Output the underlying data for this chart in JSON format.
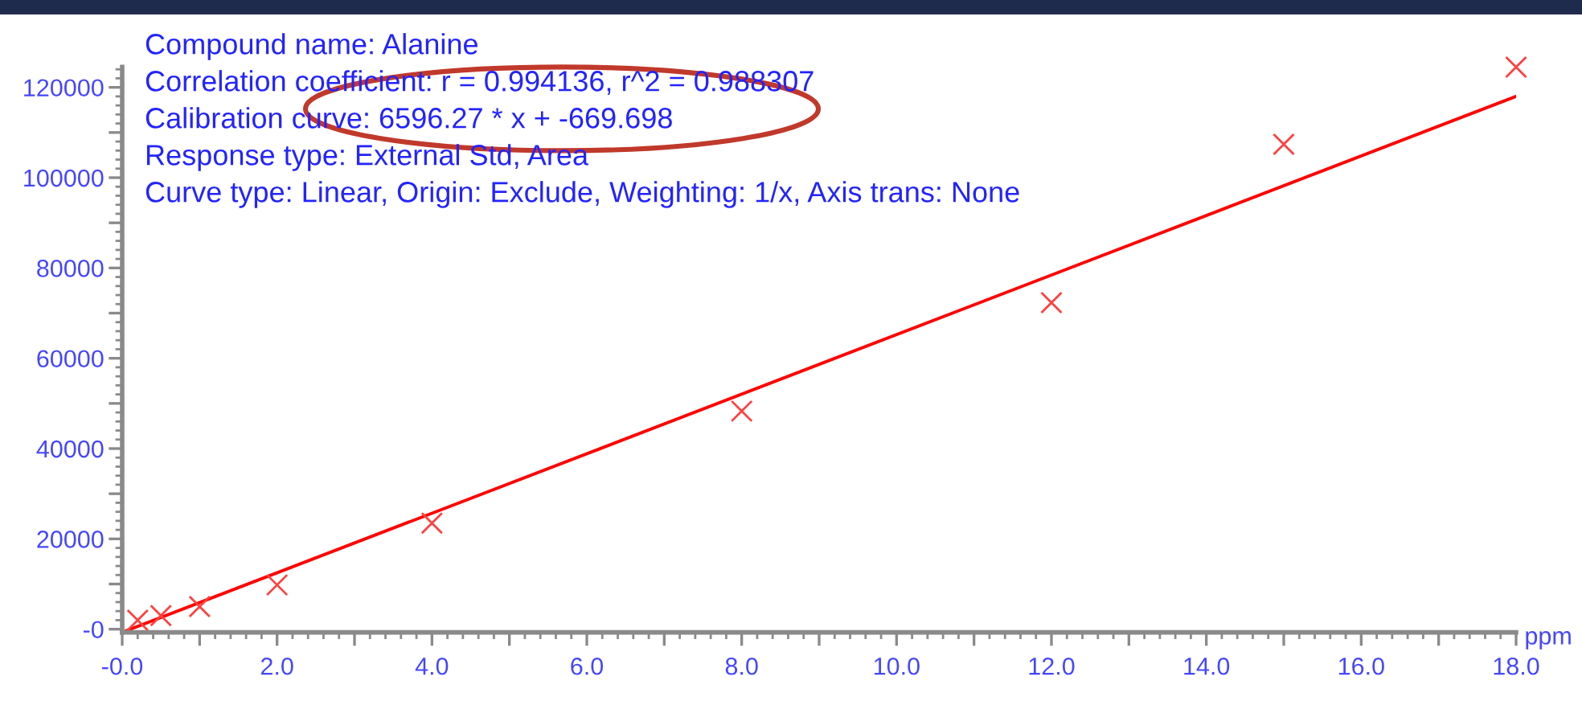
{
  "chart_data": {
    "type": "scatter",
    "xlabel": "ppm",
    "annotations": [
      "Compound name: Alanine",
      "Correlation coefficient: r = 0.994136, r^2 = 0.988307",
      "Calibration curve: 6596.27 * x + -669.698",
      "Response type: External Std, Area",
      "Curve type: Linear, Origin: Exclude, Weighting: 1/x, Axis trans: None"
    ],
    "series": [
      {
        "marker": "cross",
        "color": "#ff4040",
        "x": [
          0.2,
          0.5,
          1.0,
          2.0,
          4.0,
          8.0,
          12.0,
          15.0,
          18.0
        ],
        "values": [
          2000,
          3000,
          5000,
          9800,
          23500,
          48300,
          72300,
          107400,
          124500
        ]
      },
      {
        "type": "line",
        "marker": "none",
        "color": "#ff0000",
        "x": [
          0,
          18
        ],
        "values": [
          -700,
          118000
        ]
      }
    ],
    "xlim": [
      0,
      18
    ],
    "ylim": [
      -700,
      124500
    ],
    "xticks": [
      {
        "value": 0,
        "label": "-0.0"
      },
      {
        "value": 1,
        "label": null
      },
      {
        "value": 2,
        "label": "2.0"
      },
      {
        "value": 3,
        "label": null
      },
      {
        "value": 4,
        "label": "4.0"
      },
      {
        "value": 5,
        "label": null
      },
      {
        "value": 6,
        "label": "6.0"
      },
      {
        "value": 7,
        "label": null
      },
      {
        "value": 8,
        "label": "8.0"
      },
      {
        "value": 9,
        "label": null
      },
      {
        "value": 10,
        "label": "10.0"
      },
      {
        "value": 11,
        "label": null
      },
      {
        "value": 12,
        "label": "12.0"
      },
      {
        "value": 13,
        "label": null
      },
      {
        "value": 14,
        "label": "14.0"
      },
      {
        "value": 15,
        "label": null
      },
      {
        "value": 16,
        "label": "16.0"
      },
      {
        "value": 17,
        "label": null
      },
      {
        "value": 18,
        "label": "18.0"
      }
    ],
    "yticks": [
      {
        "value": 0,
        "label": "-0"
      },
      {
        "value": 10000,
        "label": null
      },
      20000,
      {
        "value": 30000,
        "label": null
      },
      40000,
      {
        "value": 50000,
        "label": null
      },
      60000,
      {
        "value": 70000,
        "label": null
      },
      80000,
      {
        "value": 90000,
        "label": null
      },
      100000,
      {
        "value": 110000,
        "label": null
      },
      120000
    ],
    "grid": false
  }
}
